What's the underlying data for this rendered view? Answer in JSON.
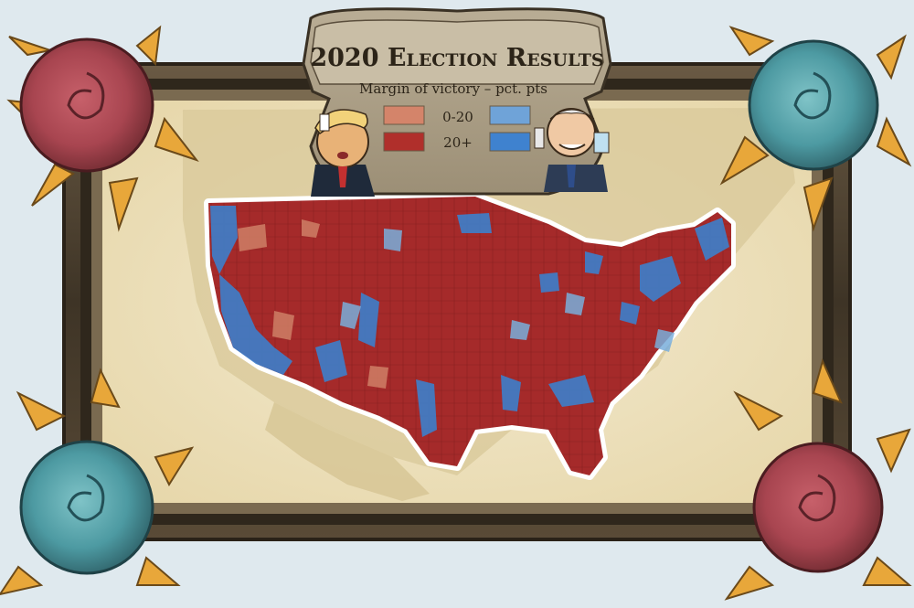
{
  "title": "2020 Election Results",
  "legend": {
    "title": "Margin of victory – pct. pts",
    "bins": [
      {
        "label": "0-20",
        "rep_color": "#d4846a",
        "dem_color": "#6fa3d8"
      },
      {
        "label": "20+",
        "rep_color": "#b02f2b",
        "dem_color": "#3f82cf"
      }
    ]
  },
  "colors": {
    "rep_strong": "#a3282a",
    "rep_lean": "#cf7f66",
    "dem_strong": "#3d7fcb",
    "dem_lean": "#7aaedb",
    "frame": "#4a3f30",
    "parchment": "#efe3c0",
    "land": "#d8c79a"
  },
  "icons": [
    "trump-caricature-icon",
    "biden-caricature-icon",
    "red-rose-icon",
    "teal-rose-icon",
    "sunflower-petal-icon"
  ]
}
